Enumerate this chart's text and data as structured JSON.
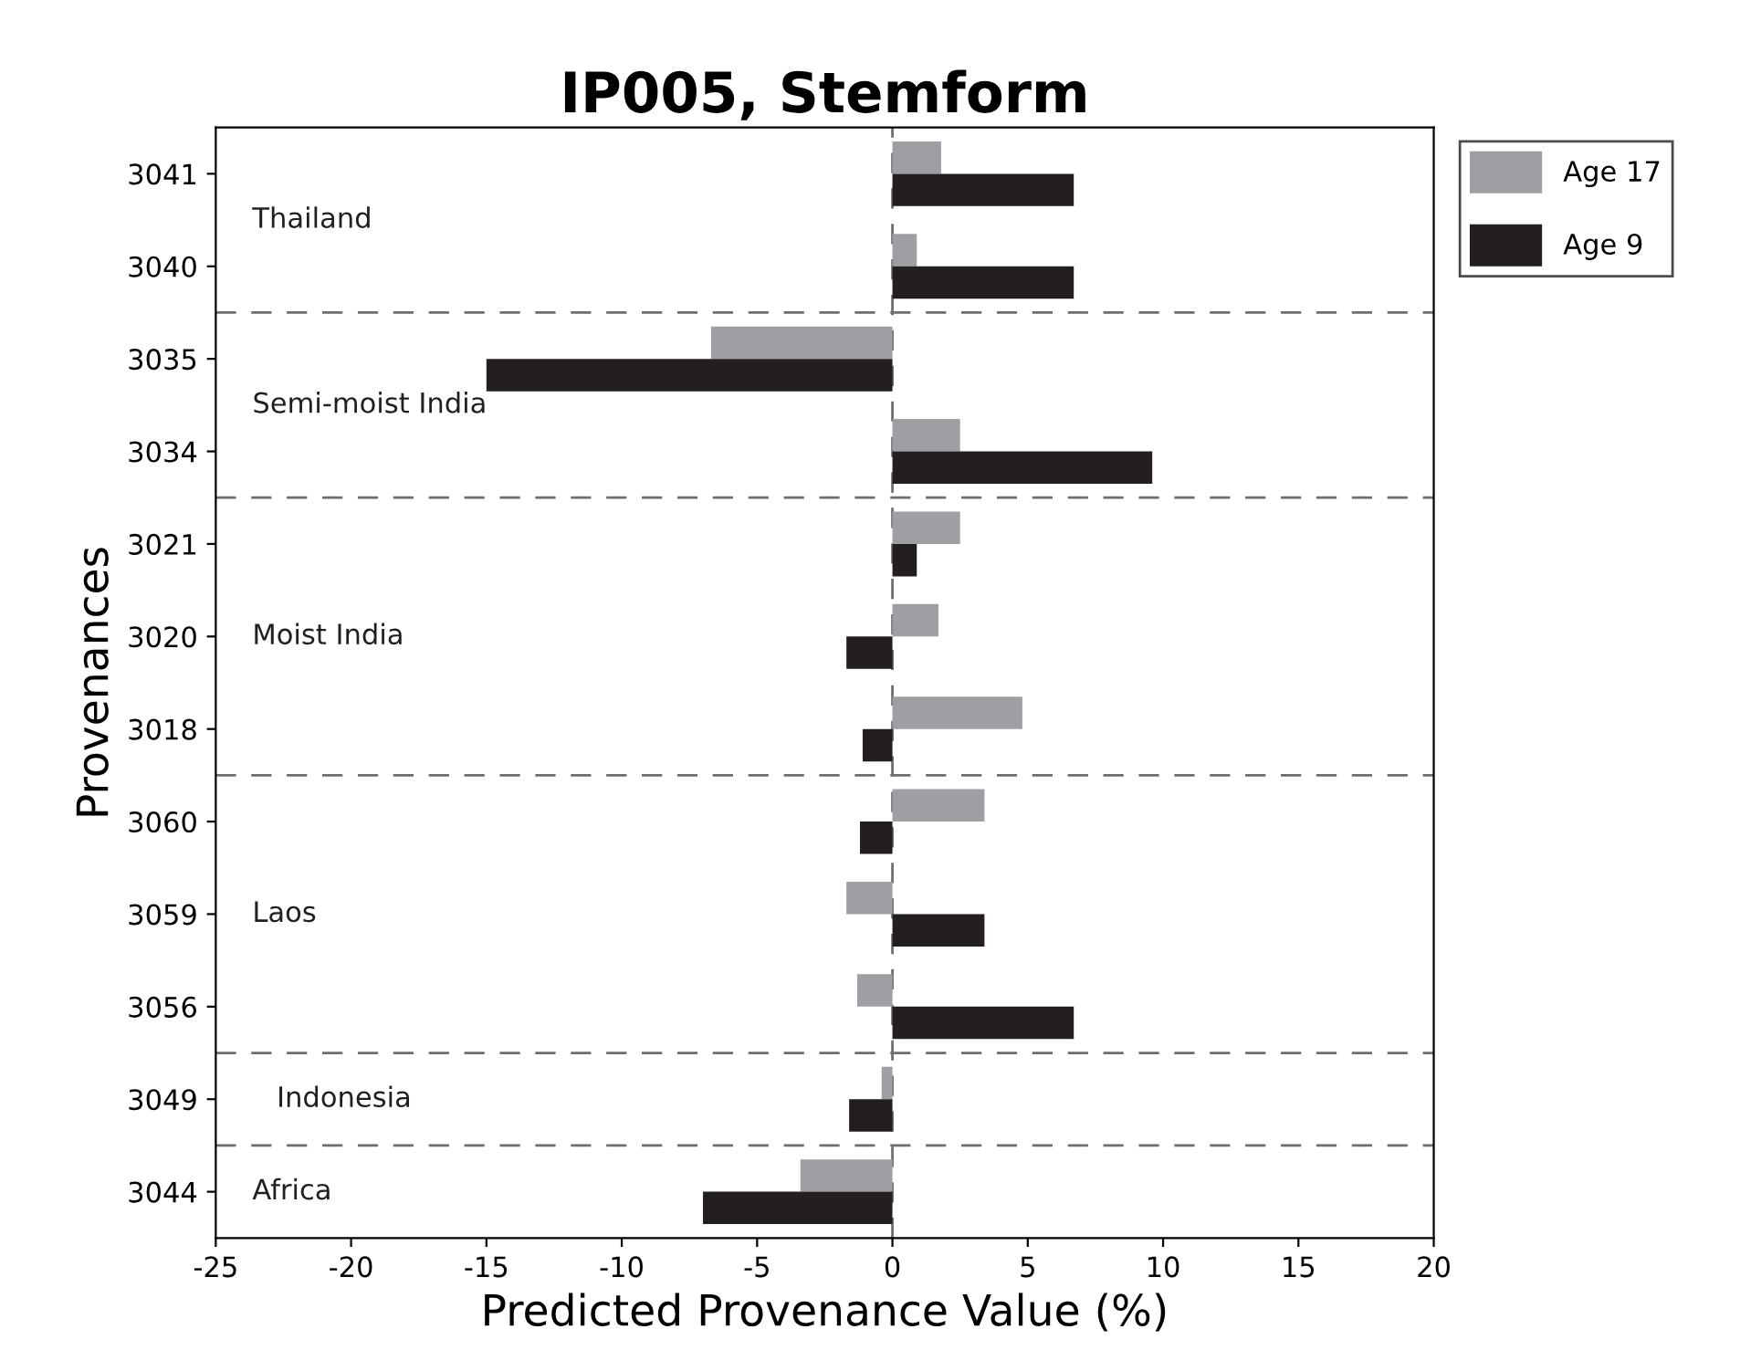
{
  "chart_data": {
    "type": "bar",
    "orientation": "horizontal",
    "title": "IP005, Stemform",
    "xlabel": "Predicted Provenance Value (%)",
    "ylabel": "Provenances",
    "categories": [
      "3041",
      "3040",
      "3035",
      "3034",
      "3021",
      "3020",
      "3018",
      "3060",
      "3059",
      "3056",
      "3049",
      "3044"
    ],
    "series": [
      {
        "name": "Age 17",
        "color": "#9d9fa2",
        "values": [
          1.8,
          0.9,
          -6.7,
          2.5,
          2.5,
          1.7,
          4.8,
          3.4,
          -1.7,
          -1.3,
          -0.4,
          -3.4
        ]
      },
      {
        "name": "Age 9",
        "color": "#231f20",
        "values": [
          6.7,
          6.7,
          -15.0,
          9.6,
          0.9,
          -1.7,
          -1.1,
          -1.2,
          3.4,
          6.7,
          -1.6,
          -7.0
        ]
      }
    ],
    "xlim": [
      -25,
      20
    ],
    "xticks": [
      -25,
      -20,
      -15,
      -10,
      -5,
      0,
      5,
      10,
      15,
      20
    ],
    "ref_lines": [
      {
        "axis": "x",
        "value": 0,
        "color": "#6d6e71",
        "line_style": "dashed"
      }
    ],
    "annotations": [
      "Thailand",
      "Semi-moist India",
      "Moist India",
      "Laos",
      "Indonesia",
      "Africa"
    ],
    "legend": "top right",
    "grid": false
  }
}
